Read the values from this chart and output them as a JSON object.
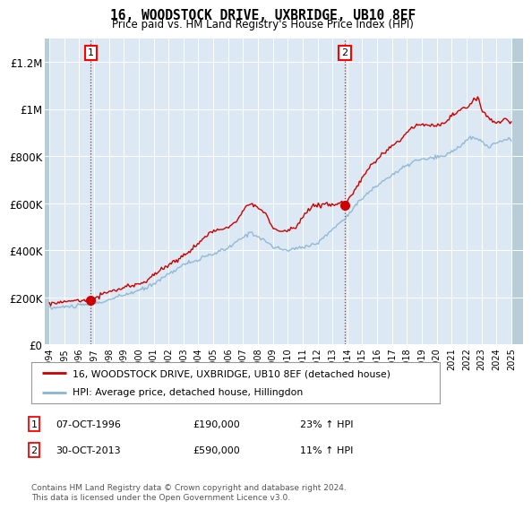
{
  "title": "16, WOODSTOCK DRIVE, UXBRIDGE, UB10 8EF",
  "subtitle": "Price paid vs. HM Land Registry's House Price Index (HPI)",
  "ylim": [
    0,
    1300000
  ],
  "yticks": [
    0,
    200000,
    400000,
    600000,
    800000,
    1000000,
    1200000
  ],
  "ytick_labels": [
    "£0",
    "£200K",
    "£400K",
    "£600K",
    "£800K",
    "£1M",
    "£1.2M"
  ],
  "background_color": "#dce8f3",
  "hatch_color": "#b8cdd8",
  "grid_color": "#ffffff",
  "line_color_red": "#cc0000",
  "line_color_blue": "#8ab4d4",
  "sale1_x": 1996.77,
  "sale1_y": 190000,
  "sale2_x": 2013.83,
  "sale2_y": 590000,
  "legend_label_red": "16, WOODSTOCK DRIVE, UXBRIDGE, UB10 8EF (detached house)",
  "legend_label_blue": "HPI: Average price, detached house, Hillingdon",
  "note1_label": "1",
  "note1_date": "07-OCT-1996",
  "note1_price": "£190,000",
  "note1_hpi": "23% ↑ HPI",
  "note2_label": "2",
  "note2_date": "30-OCT-2013",
  "note2_price": "£590,000",
  "note2_hpi": "11% ↑ HPI",
  "footer": "Contains HM Land Registry data © Crown copyright and database right 2024.\nThis data is licensed under the Open Government Licence v3.0.",
  "xmin": 1993.7,
  "xmax": 2025.8
}
